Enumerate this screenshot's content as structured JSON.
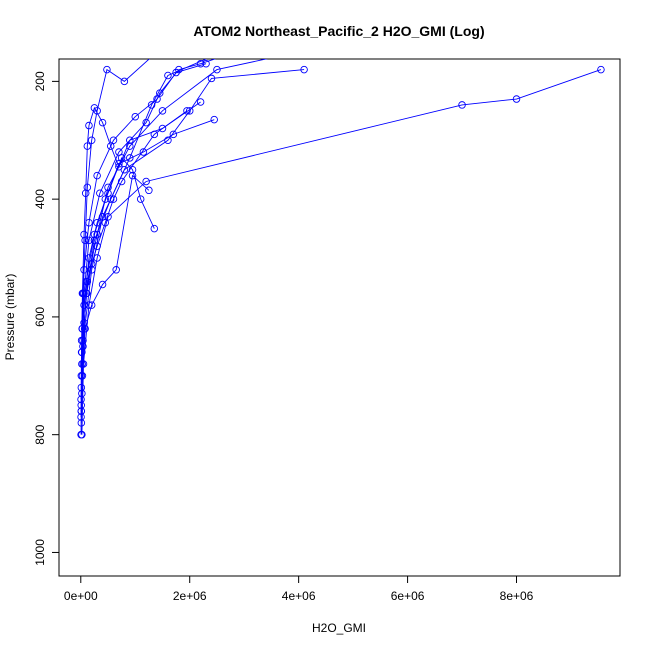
{
  "chart_data": {
    "type": "line",
    "title": "ATOM2 Northeast_Pacific_2 H2O_GMI (Log)",
    "xlabel": "H2O_GMI",
    "ylabel": "Pressure (mbar)",
    "xlim": [
      -400000,
      9900000
    ],
    "ylim": [
      1040,
      162
    ],
    "y_reversed": true,
    "grid": false,
    "series_color": "#0000ff",
    "x_ticks": [
      {
        "value": 0,
        "label": "0e+00"
      },
      {
        "value": 2000000,
        "label": "2e+06"
      },
      {
        "value": 4000000,
        "label": "4e+06"
      },
      {
        "value": 6000000,
        "label": "6e+06"
      },
      {
        "value": 8000000,
        "label": "8e+06"
      }
    ],
    "y_ticks": [
      {
        "value": 200,
        "label": "200"
      },
      {
        "value": 400,
        "label": "400"
      },
      {
        "value": 600,
        "label": "600"
      },
      {
        "value": 800,
        "label": "800"
      },
      {
        "value": 1000,
        "label": "1000"
      }
    ],
    "series": [
      {
        "points": [
          [
            9550000,
            180
          ],
          [
            8000000,
            230
          ],
          [
            7000000,
            240
          ],
          [
            1200000,
            370
          ],
          [
            500000,
            430
          ],
          [
            300000,
            500
          ],
          [
            150000,
            580
          ],
          [
            50000,
            680
          ],
          [
            20000,
            800
          ]
        ]
      },
      {
        "points": [
          [
            5500000,
            120
          ],
          [
            2500000,
            180
          ],
          [
            1500000,
            250
          ],
          [
            900000,
            310
          ],
          [
            500000,
            380
          ],
          [
            300000,
            460
          ],
          [
            120000,
            540
          ],
          [
            40000,
            640
          ],
          [
            10000,
            760
          ]
        ]
      },
      {
        "points": [
          [
            4100000,
            180
          ],
          [
            2400000,
            195
          ],
          [
            2000000,
            250
          ],
          [
            1600000,
            300
          ],
          [
            800000,
            350
          ],
          [
            400000,
            430
          ],
          [
            200000,
            520
          ],
          [
            70000,
            620
          ],
          [
            20000,
            730
          ]
        ]
      },
      {
        "points": [
          [
            3500000,
            130
          ],
          [
            2200000,
            170
          ],
          [
            1800000,
            180
          ],
          [
            1450000,
            220
          ],
          [
            1200000,
            270
          ],
          [
            700000,
            320
          ],
          [
            350000,
            390
          ],
          [
            150000,
            470
          ],
          [
            60000,
            560
          ],
          [
            20000,
            680
          ]
        ]
      },
      {
        "points": [
          [
            2600000,
            150
          ],
          [
            1600000,
            190
          ],
          [
            1300000,
            240
          ],
          [
            900000,
            330
          ],
          [
            550000,
            400
          ],
          [
            250000,
            470
          ],
          [
            100000,
            560
          ],
          [
            40000,
            650
          ],
          [
            10000,
            780
          ]
        ]
      },
      {
        "points": [
          [
            1400000,
            150
          ],
          [
            800000,
            200
          ],
          [
            480000,
            180
          ],
          [
            300000,
            250
          ],
          [
            200000,
            300
          ],
          [
            120000,
            380
          ],
          [
            80000,
            470
          ],
          [
            40000,
            560
          ],
          [
            15000,
            660
          ],
          [
            5000,
            800
          ]
        ]
      },
      {
        "points": [
          [
            2300000,
            170
          ],
          [
            1750000,
            185
          ],
          [
            1400000,
            230
          ],
          [
            1000000,
            260
          ],
          [
            600000,
            300
          ],
          [
            300000,
            360
          ],
          [
            150000,
            440
          ],
          [
            60000,
            520
          ],
          [
            25000,
            620
          ],
          [
            10000,
            700
          ]
        ]
      },
      {
        "points": [
          [
            1350000,
            450
          ],
          [
            1100000,
            400
          ],
          [
            950000,
            350
          ],
          [
            750000,
            330
          ],
          [
            500000,
            390
          ],
          [
            300000,
            440
          ],
          [
            150000,
            500
          ],
          [
            60000,
            580
          ],
          [
            20000,
            660
          ],
          [
            5000,
            770
          ]
        ]
      },
      {
        "points": [
          [
            2450000,
            265
          ],
          [
            1700000,
            290
          ],
          [
            1150000,
            320
          ],
          [
            700000,
            340
          ],
          [
            450000,
            400
          ],
          [
            250000,
            460
          ],
          [
            100000,
            540
          ],
          [
            30000,
            620
          ],
          [
            10000,
            720
          ]
        ]
      },
      {
        "points": [
          [
            1250000,
            385
          ],
          [
            950000,
            360
          ],
          [
            650000,
            520
          ],
          [
            400000,
            545
          ],
          [
            200000,
            580
          ],
          [
            80000,
            620
          ],
          [
            30000,
            700
          ],
          [
            8000,
            760
          ]
        ]
      },
      {
        "points": [
          [
            2200000,
            235
          ],
          [
            1500000,
            280
          ],
          [
            900000,
            300
          ],
          [
            700000,
            345
          ],
          [
            550000,
            310
          ],
          [
            400000,
            270
          ],
          [
            250000,
            245
          ],
          [
            150000,
            275
          ],
          [
            120000,
            310
          ],
          [
            90000,
            390
          ],
          [
            60000,
            460
          ],
          [
            30000,
            560
          ],
          [
            15000,
            640
          ],
          [
            5000,
            740
          ]
        ]
      },
      {
        "points": [
          [
            1950000,
            250
          ],
          [
            1350000,
            290
          ],
          [
            750000,
            370
          ],
          [
            600000,
            400
          ],
          [
            450000,
            440
          ],
          [
            300000,
            480
          ],
          [
            200000,
            510
          ],
          [
            110000,
            560
          ],
          [
            60000,
            610
          ],
          [
            25000,
            680
          ],
          [
            8000,
            750
          ]
        ]
      }
    ]
  }
}
